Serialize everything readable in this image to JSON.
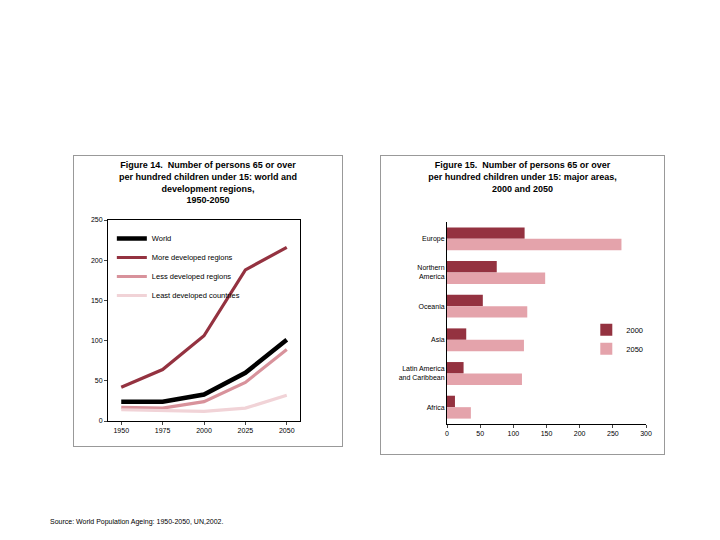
{
  "source": "Source: World Population Ageing: 1950-2050, UN,2002.",
  "chart_data": [
    {
      "type": "line",
      "title": "Figure 14.  Number of persons 65 or over\nper hundred children under 15: world and\ndevelopment regions,\n1950-2050",
      "x": [
        1950,
        1975,
        2000,
        2025,
        2050
      ],
      "xlim": [
        1942,
        2058
      ],
      "xticks": [
        1950,
        1975,
        2000,
        2025,
        2050
      ],
      "ylim": [
        0,
        250
      ],
      "yticks": [
        0,
        50,
        100,
        150,
        200,
        250
      ],
      "grid": false,
      "legend": "top left",
      "series": [
        {
          "name": "World",
          "color": "#000000",
          "values": [
            24,
            24,
            33,
            60,
            101
          ]
        },
        {
          "name": "More developed regions",
          "color": "#943240",
          "values": [
            42,
            64,
            106,
            188,
            216
          ]
        },
        {
          "name": "Less developed regions",
          "color": "#d8929b",
          "values": [
            17,
            16,
            24,
            48,
            89
          ]
        },
        {
          "name": "Least developed countries",
          "color": "#f1d3d7",
          "values": [
            14,
            13,
            12,
            16,
            32
          ]
        }
      ]
    },
    {
      "type": "bar",
      "orientation": "horizontal",
      "title": "Figure 15.  Number of persons 65 or over\nper hundred children under 15: major areas,\n2000 and 2050",
      "categories": [
        "Europe",
        "Northern\nAmerica",
        "Oceania",
        "Asia",
        "Latin America\nand Caribbean",
        "Africa"
      ],
      "xlim": [
        0,
        300
      ],
      "xticks": [
        0,
        50,
        100,
        150,
        200,
        250,
        300
      ],
      "grid": false,
      "legend": "right",
      "series": [
        {
          "name": "2000",
          "color": "#943240",
          "values": [
            117,
            75,
            54,
            29,
            25,
            12
          ]
        },
        {
          "name": "2050",
          "color": "#e4a3ab",
          "values": [
            263,
            148,
            121,
            116,
            113,
            36
          ]
        }
      ]
    }
  ]
}
